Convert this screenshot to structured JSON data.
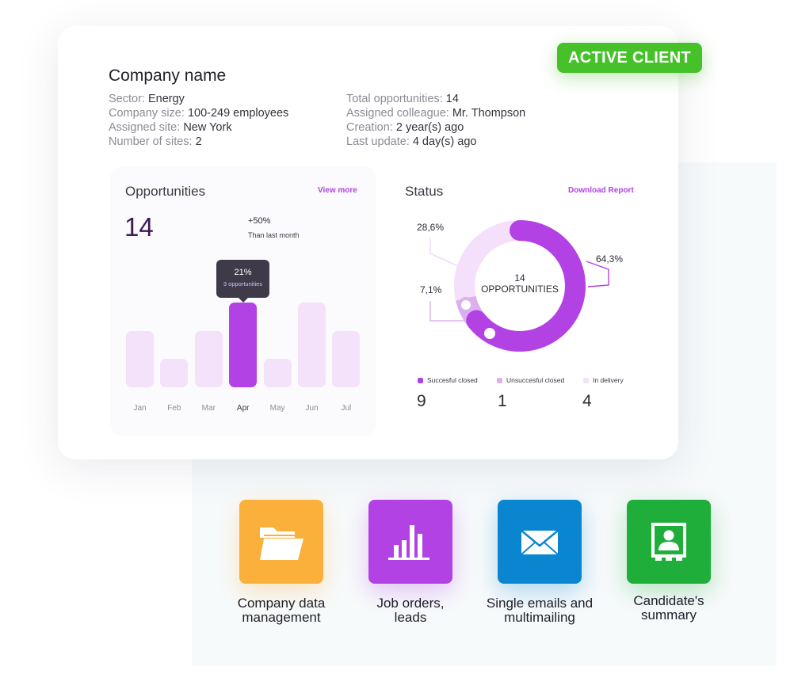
{
  "badge": "ACTIVE CLIENT",
  "company": {
    "name": "Company name",
    "left_info": [
      {
        "key": "Sector: ",
        "value": "Energy"
      },
      {
        "key": "Company size: ",
        "value": "100-249 employees"
      },
      {
        "key": "Assigned site: ",
        "value": "New York"
      },
      {
        "key": "Number of sites: ",
        "value": "2"
      }
    ],
    "right_info": [
      {
        "key": "Total opportunities: ",
        "value": "14"
      },
      {
        "key": "Assigned colleague: ",
        "value": "Mr. Thompson"
      },
      {
        "key": "Creation: ",
        "value": "2 year(s) ago"
      },
      {
        "key": "Last update: ",
        "value": "4 day(s) ago"
      }
    ]
  },
  "opportunities": {
    "title": "Opportunities",
    "link": "View more",
    "total": "14",
    "delta": "+50%",
    "delta_sub": "Than last month",
    "tooltip": {
      "value": "21%",
      "label": "3 opportunities"
    }
  },
  "status": {
    "title": "Status",
    "link": "Download Report",
    "center_value": "14",
    "center_label": "OPPORTUNITIES",
    "pct_labels": {
      "succ": "64,3%",
      "unsucc": "7,1%",
      "deliv": "28,6%"
    },
    "legend": [
      {
        "label": "Succesful closed",
        "count": "9",
        "color": "#b342e4"
      },
      {
        "label": "Unsuccesful closed",
        "count": "1",
        "color": "#dcb0ef"
      },
      {
        "label": "In delivery",
        "count": "4",
        "color": "#f4e0fb"
      }
    ]
  },
  "chart_data": [
    {
      "type": "bar",
      "title": "Opportunities",
      "categories": [
        "Jan",
        "Feb",
        "Mar",
        "Apr",
        "May",
        "Jun",
        "Jul"
      ],
      "values": [
        2,
        1,
        2,
        3,
        1,
        3,
        2
      ],
      "highlight": "Apr"
    },
    {
      "type": "pie",
      "title": "Status",
      "categories": [
        "Succesful closed",
        "Unsuccesful closed",
        "In delivery"
      ],
      "values": [
        64.3,
        7.1,
        28.6
      ],
      "counts": [
        9,
        1,
        4
      ]
    }
  ],
  "features": [
    {
      "label": "Company data management",
      "color": "#fbb03b",
      "icon": "folder-icon"
    },
    {
      "label": "Job orders, leads",
      "color": "#b342e4",
      "icon": "bar-chart-icon"
    },
    {
      "label": "Single emails and multimailing",
      "color": "#0a86d1",
      "icon": "mail-icon"
    },
    {
      "label": "Candidate's summary",
      "color": "#1fae3a",
      "icon": "contact-card-icon"
    }
  ]
}
